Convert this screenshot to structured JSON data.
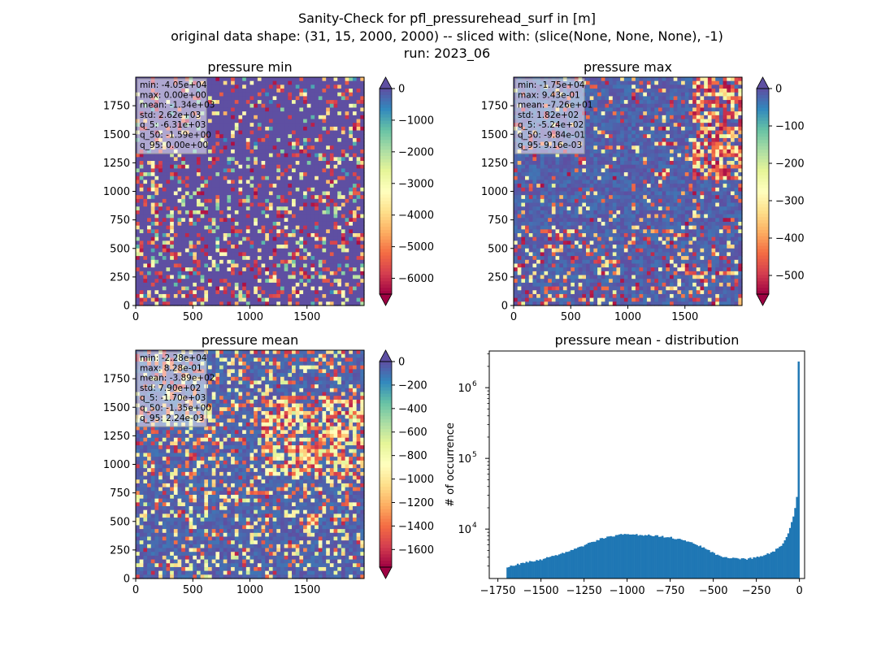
{
  "figure": {
    "title_lines": [
      "Sanity-Check for pfl_pressurehead_surf in [m]",
      "original data shape: (31, 15, 2000, 2000) -- sliced with: (slice(None, None, None), -1)",
      "run: 2023_06"
    ]
  },
  "chart_data": [
    {
      "type": "heatmap",
      "id": "min",
      "title": "pressure min",
      "colormap": "Spectral",
      "xticks": [
        "0",
        "500",
        "1000",
        "1500"
      ],
      "xtick_values": [
        0,
        500,
        1000,
        1500
      ],
      "yticks": [
        "0",
        "250",
        "500",
        "750",
        "1000",
        "1250",
        "1500",
        "1750"
      ],
      "ytick_values": [
        0,
        250,
        500,
        750,
        1000,
        1250,
        1500,
        1750
      ],
      "xlim": [
        0,
        2000
      ],
      "ylim": [
        0,
        2000
      ],
      "colorbar": {
        "range": [
          -6500,
          0
        ],
        "extend": "both",
        "ticks": [
          "0",
          "−1000",
          "−2000",
          "−3000",
          "−4000",
          "−5000",
          "−6000"
        ],
        "tick_values": [
          0,
          -1000,
          -2000,
          -3000,
          -4000,
          -5000,
          -6000
        ]
      },
      "stats": [
        "min: -4.05e+04",
        "max: 0.00e+00",
        "mean: -1.34e+03",
        "std: 2.62e+03",
        "q_5: -6.31e+03",
        "q_50: -1.59e+00",
        "q_95: 0.00e+00"
      ]
    },
    {
      "type": "heatmap",
      "id": "max",
      "title": "pressure max",
      "colormap": "Spectral",
      "xticks": [
        "0",
        "500",
        "1000",
        "1500"
      ],
      "xtick_values": [
        0,
        500,
        1000,
        1500
      ],
      "yticks": [
        "0",
        "250",
        "500",
        "750",
        "1000",
        "1250",
        "1500",
        "1750"
      ],
      "ytick_values": [
        0,
        250,
        500,
        750,
        1000,
        1250,
        1500,
        1750
      ],
      "xlim": [
        0,
        2000
      ],
      "ylim": [
        0,
        2000
      ],
      "colorbar": {
        "range": [
          -550,
          0
        ],
        "extend": "both",
        "ticks": [
          "0",
          "−100",
          "−200",
          "−300",
          "−400",
          "−500"
        ],
        "tick_values": [
          0,
          -100,
          -200,
          -300,
          -400,
          -500
        ]
      },
      "stats": [
        "min: -1.75e+04",
        "max: 9.43e-01",
        "mean: -7.26e+01",
        "std: 1.82e+02",
        "q_5: -5.24e+02",
        "q_50: -9.84e-01",
        "q_95: 9.16e-03"
      ]
    },
    {
      "type": "heatmap",
      "id": "mean",
      "title": "pressure mean",
      "colormap": "Spectral",
      "xticks": [
        "0",
        "500",
        "1000",
        "1500"
      ],
      "xtick_values": [
        0,
        500,
        1000,
        1500
      ],
      "yticks": [
        "0",
        "250",
        "500",
        "750",
        "1000",
        "1250",
        "1500",
        "1750"
      ],
      "ytick_values": [
        0,
        250,
        500,
        750,
        1000,
        1250,
        1500,
        1750
      ],
      "xlim": [
        0,
        2000
      ],
      "ylim": [
        0,
        2000
      ],
      "colorbar": {
        "range": [
          -1750,
          0
        ],
        "extend": "both",
        "ticks": [
          "0",
          "−200",
          "−400",
          "−600",
          "−800",
          "−1000",
          "−1200",
          "−1400",
          "−1600"
        ],
        "tick_values": [
          0,
          -200,
          -400,
          -600,
          -800,
          -1000,
          -1200,
          -1400,
          -1600
        ]
      },
      "stats": [
        "min: -2.28e+04",
        "max: 8.28e-01",
        "mean: -3.89e+02",
        "std: 7.90e+02",
        "q_5: -1.70e+03",
        "q_50: -1.35e+00",
        "q_95: 2.24e-03"
      ]
    },
    {
      "type": "bar",
      "id": "hist",
      "title": "pressure mean - distribution",
      "xlabel": "",
      "ylabel": "# of occurrence",
      "yscale": "log",
      "xlim": [
        -1800,
        30
      ],
      "ylim": [
        2000,
        3300000
      ],
      "xticks": [
        "−1750",
        "−1500",
        "−1250",
        "−1000",
        "−750",
        "−500",
        "−250",
        "0"
      ],
      "xtick_values": [
        -1750,
        -1500,
        -1250,
        -1000,
        -750,
        -500,
        -250,
        0
      ],
      "yticks": [
        "10",
        "10",
        "10"
      ],
      "ytick_exponents": [
        "4",
        "5",
        "6"
      ],
      "ytick_values": [
        10000,
        100000,
        1000000
      ],
      "bar_color": "#1f77b4",
      "bin_width": 10,
      "profile_x": [
        -1700,
        -1650,
        -1600,
        -1500,
        -1400,
        -1300,
        -1250,
        -1200,
        -1150,
        -1100,
        -1050,
        -1000,
        -950,
        -900,
        -850,
        -800,
        -750,
        -700,
        -650,
        -600,
        -550,
        -500,
        -450,
        -400,
        -350,
        -300,
        -250,
        -200,
        -150,
        -100,
        -70,
        -50,
        -30,
        -20,
        -10,
        -5,
        0
      ],
      "profile_y": [
        2900,
        3100,
        3300,
        3700,
        4300,
        5200,
        5900,
        6600,
        7300,
        7800,
        8200,
        8500,
        8300,
        8200,
        8100,
        7900,
        7600,
        7200,
        6700,
        6100,
        5400,
        4600,
        4100,
        3900,
        3800,
        3800,
        4000,
        4300,
        4800,
        6000,
        8000,
        11000,
        17000,
        22000,
        35000,
        2300000,
        2300000
      ]
    }
  ]
}
